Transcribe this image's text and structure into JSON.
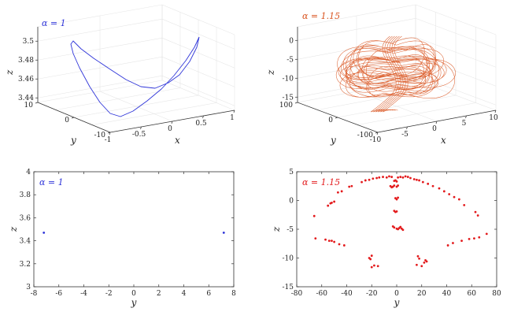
{
  "colors": {
    "blue": "#2f35d9",
    "orange": "#d9531e",
    "red": "#e31a1c",
    "axis": "#333333"
  },
  "chart_data": [
    {
      "id": "top-left",
      "type": "line3d",
      "annotation": "α = 1",
      "color": "#2f35d9",
      "xlabel": "x",
      "ylabel": "y",
      "zlabel": "z",
      "x_ticks": [
        "-1",
        "-0.5",
        "0",
        "0.5",
        "1"
      ],
      "y_ticks": [
        "-10",
        "0",
        "10"
      ],
      "z_ticks": [
        "3.44",
        "3.46",
        "3.48",
        "3.5"
      ],
      "xlim": [
        -1.1,
        1.1
      ],
      "ylim": [
        -10,
        10
      ],
      "zlim": [
        3.435,
        3.515
      ],
      "curve": [
        {
          "x": 0.92,
          "y": 7.0,
          "z": 3.512
        },
        {
          "x": 0.8,
          "y": 5.8,
          "z": 3.503
        },
        {
          "x": 0.6,
          "y": 4.0,
          "z": 3.492
        },
        {
          "x": 0.35,
          "y": 2.0,
          "z": 3.478
        },
        {
          "x": 0.1,
          "y": 0.3,
          "z": 3.466
        },
        {
          "x": -0.15,
          "y": -1.8,
          "z": 3.452
        },
        {
          "x": -0.35,
          "y": -3.8,
          "z": 3.44
        },
        {
          "x": -0.55,
          "y": -5.8,
          "z": 3.437
        },
        {
          "x": -0.75,
          "y": -7.0,
          "z": 3.441
        },
        {
          "x": -0.95,
          "y": -7.2,
          "z": 3.456
        },
        {
          "x": -1.05,
          "y": -6.4,
          "z": 3.478
        },
        {
          "x": -1.0,
          "y": -4.0,
          "z": 3.497
        },
        {
          "x": -0.82,
          "y": -1.0,
          "z": 3.505
        },
        {
          "x": -0.6,
          "y": 1.5,
          "z": 3.499
        },
        {
          "x": -0.35,
          "y": 3.0,
          "z": 3.486
        },
        {
          "x": -0.1,
          "y": 4.0,
          "z": 3.474
        },
        {
          "x": 0.15,
          "y": 4.8,
          "z": 3.468
        },
        {
          "x": 0.4,
          "y": 5.6,
          "z": 3.472
        },
        {
          "x": 0.62,
          "y": 6.4,
          "z": 3.485
        },
        {
          "x": 0.8,
          "y": 7.0,
          "z": 3.5
        },
        {
          "x": 0.92,
          "y": 7.0,
          "z": 3.512
        }
      ]
    },
    {
      "id": "top-right",
      "type": "line3d",
      "annotation": "α = 1.15",
      "color": "#d9531e",
      "xlabel": "x",
      "ylabel": "y",
      "zlabel": "z",
      "x_ticks": [
        "-10",
        "-5",
        "0",
        "5",
        "10"
      ],
      "y_ticks": [
        "-100",
        "0",
        "100"
      ],
      "z_ticks": [
        "-15",
        "-10",
        "-5",
        "0"
      ],
      "xlim": [
        -11,
        11
      ],
      "ylim": [
        -100,
        100
      ],
      "zlim": [
        -16,
        4
      ]
    },
    {
      "id": "bottom-left",
      "type": "scatter",
      "annotation": "α = 1",
      "color": "#2f35d9",
      "xlabel": "y",
      "ylabel": "z",
      "xlim": [
        -8,
        8
      ],
      "ylim": [
        3,
        4
      ],
      "x_ticks": [
        -8,
        -6,
        -4,
        -2,
        0,
        2,
        4,
        6,
        8
      ],
      "y_ticks": [
        3,
        3.2,
        3.4,
        3.6,
        3.8,
        4
      ],
      "points": [
        [
          -7.2,
          3.47
        ],
        [
          7.2,
          3.47
        ]
      ]
    },
    {
      "id": "bottom-right",
      "type": "scatter",
      "annotation": "α = 1.15",
      "color": "#e31a1c",
      "xlabel": "y",
      "ylabel": "z",
      "xlim": [
        -80,
        80
      ],
      "ylim": [
        -15,
        5
      ],
      "x_ticks": [
        -80,
        -60,
        -40,
        -20,
        0,
        20,
        40,
        60,
        80
      ],
      "y_ticks": [
        -15,
        -10,
        -5,
        0,
        5
      ],
      "points": [
        [
          -66,
          -2.7
        ],
        [
          -65,
          -6.6
        ],
        [
          -57,
          -6.8
        ],
        [
          -54,
          -7.0
        ],
        [
          -52,
          -7.0
        ],
        [
          -50,
          -7.2
        ],
        [
          -46,
          -7.6
        ],
        [
          -42,
          -7.8
        ],
        [
          -55,
          -0.9
        ],
        [
          -53,
          -0.5
        ],
        [
          -52,
          -0.4
        ],
        [
          -50,
          -0.2
        ],
        [
          -47,
          1.4
        ],
        [
          -44,
          1.6
        ],
        [
          -38,
          2.4
        ],
        [
          -36,
          2.5
        ],
        [
          -28,
          3.2
        ],
        [
          -25,
          3.5
        ],
        [
          -22,
          3.6
        ],
        [
          -19,
          3.8
        ],
        [
          -16,
          3.9
        ],
        [
          -14,
          4.0
        ],
        [
          -11,
          4.1
        ],
        [
          -8,
          4.0
        ],
        [
          -6,
          4.2
        ],
        [
          -4,
          4.1
        ],
        [
          -2,
          3.4
        ],
        [
          -1,
          3.5
        ],
        [
          0,
          3.3
        ],
        [
          1,
          4.0
        ],
        [
          3,
          4.1
        ],
        [
          5,
          4.0
        ],
        [
          7,
          4.2
        ],
        [
          9,
          4.1
        ],
        [
          11,
          3.9
        ],
        [
          14,
          3.7
        ],
        [
          16,
          3.6
        ],
        [
          18,
          3.5
        ],
        [
          21,
          3.2
        ],
        [
          25,
          2.9
        ],
        [
          29,
          2.5
        ],
        [
          34,
          2.1
        ],
        [
          38,
          1.6
        ],
        [
          42,
          1.1
        ],
        [
          46,
          0.6
        ],
        [
          50,
          0.2
        ],
        [
          54,
          -0.8
        ],
        [
          63,
          -2.0
        ],
        [
          65,
          -2.6
        ],
        [
          -5,
          2.5
        ],
        [
          -4,
          2.3
        ],
        [
          -3,
          2.4
        ],
        [
          -2,
          2.6
        ],
        [
          0,
          2.4
        ],
        [
          1,
          2.6
        ],
        [
          -1,
          0.4
        ],
        [
          0,
          0.2
        ],
        [
          1,
          0.5
        ],
        [
          -2,
          -1.8
        ],
        [
          -1,
          -2.0
        ],
        [
          0,
          -1.9
        ],
        [
          -3,
          -4.5
        ],
        [
          -2,
          -4.7
        ],
        [
          0,
          -4.9
        ],
        [
          1,
          -5.0
        ],
        [
          2,
          -4.8
        ],
        [
          3,
          -4.6
        ],
        [
          4,
          -4.9
        ],
        [
          5,
          -5.1
        ],
        [
          -20,
          -9.6
        ],
        [
          -21,
          -10.2
        ],
        [
          -22,
          -10.0
        ],
        [
          -18,
          -11.3
        ],
        [
          -15,
          -11.4
        ],
        [
          -20,
          -11.6
        ],
        [
          17,
          -9.7
        ],
        [
          18,
          -10.1
        ],
        [
          16,
          -11.2
        ],
        [
          20,
          -11.4
        ],
        [
          22,
          -10.8
        ],
        [
          23,
          -10.4
        ],
        [
          24,
          -10.6
        ],
        [
          41,
          -7.8
        ],
        [
          45,
          -7.4
        ],
        [
          52,
          -7.0
        ],
        [
          58,
          -6.7
        ],
        [
          62,
          -6.6
        ],
        [
          66,
          -6.4
        ],
        [
          72,
          -5.8
        ]
      ]
    }
  ]
}
